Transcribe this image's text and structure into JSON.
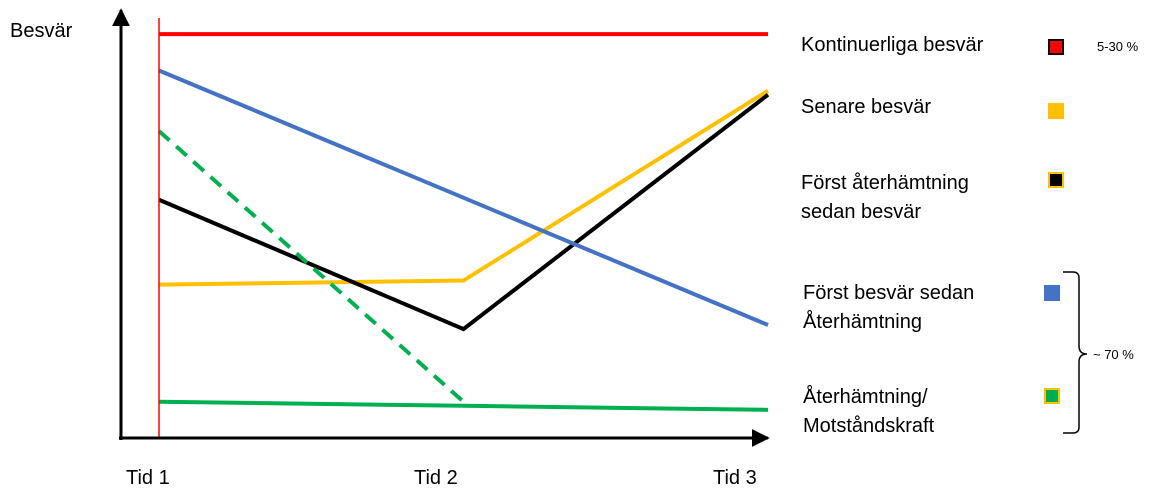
{
  "chart_data": {
    "type": "line",
    "title": "",
    "ylabel": "Besvär",
    "xlabel": "",
    "categories": [
      "Tid 1",
      "Tid 2",
      "Tid 3"
    ],
    "xlim": [
      1,
      3
    ],
    "ylim": [
      0,
      10
    ],
    "grid": false,
    "legend_position": "right",
    "marker_x": 1,
    "series": [
      {
        "name": "Kontinuerliga besvär",
        "color": "#ff0000",
        "swatch_border": "#000000",
        "dashed": false,
        "x": [
          1,
          3
        ],
        "y": [
          9.7,
          9.7
        ]
      },
      {
        "name": "Senare besvär",
        "color": "#ffc000",
        "swatch_border": "#ffc000",
        "dashed": false,
        "x": [
          1,
          2,
          3
        ],
        "y": [
          3.5,
          3.6,
          8.3
        ]
      },
      {
        "name": "Först återhämtning\nsedan besvär",
        "color": "#000000",
        "swatch_border": "#ffc000",
        "dashed": false,
        "x": [
          1,
          2,
          3
        ],
        "y": [
          5.6,
          2.4,
          8.2
        ]
      },
      {
        "name": "Först besvär sedan\nÅterhämtning",
        "color": "#4472c4",
        "swatch_border": "#4472c4",
        "dashed": false,
        "x": [
          1,
          3
        ],
        "y": [
          8.8,
          2.5
        ]
      },
      {
        "name": "Återhämtning/\nMotståndskraft",
        "color": "#00b050",
        "swatch_border": "#ffc000",
        "dashed": false,
        "x": [
          1,
          2,
          3
        ],
        "y": [
          0.6,
          0.5,
          0.4
        ]
      },
      {
        "name": "",
        "color": "#00b050",
        "swatch_border": "",
        "dashed": true,
        "x": [
          1,
          2
        ],
        "y": [
          7.3,
          0.6
        ]
      }
    ],
    "annotations": {
      "top_range": "5-30 %",
      "bottom_range": "~ 70 %"
    }
  }
}
